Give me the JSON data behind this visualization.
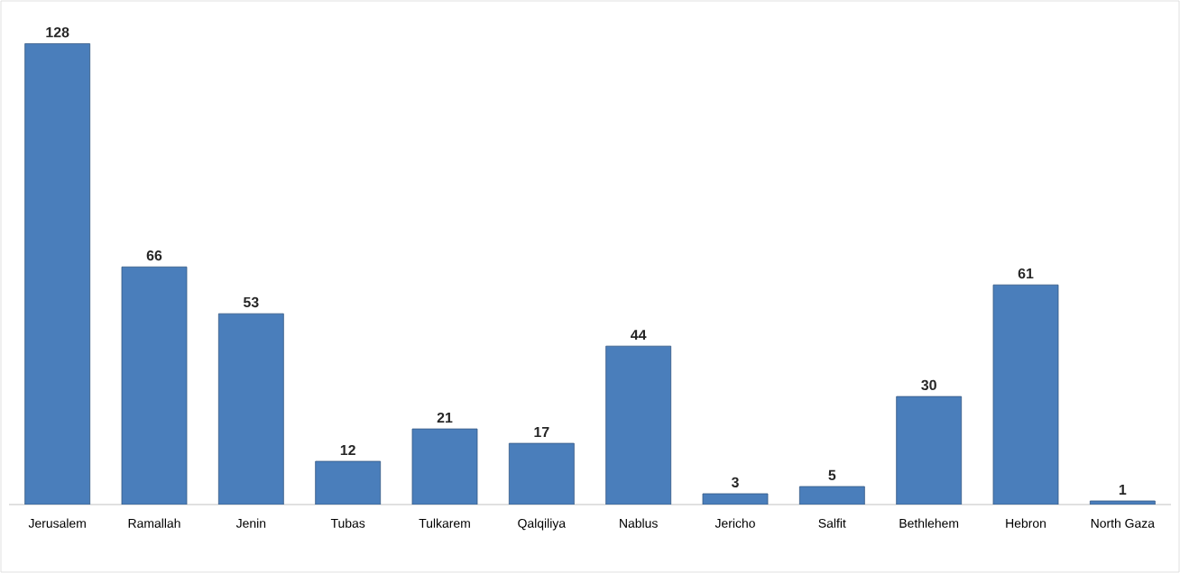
{
  "chart_data": {
    "type": "bar",
    "categories": [
      "Jerusalem",
      "Ramallah",
      "Jenin",
      "Tubas",
      "Tulkarem",
      "Qalqiliya",
      "Nablus",
      "Jericho",
      "Salfit",
      "Bethlehem",
      "Hebron",
      "North Gaza"
    ],
    "values": [
      128,
      66,
      53,
      12,
      21,
      17,
      44,
      3,
      5,
      30,
      61,
      1
    ],
    "color": "#4a7ebb",
    "data_labels": true
  }
}
